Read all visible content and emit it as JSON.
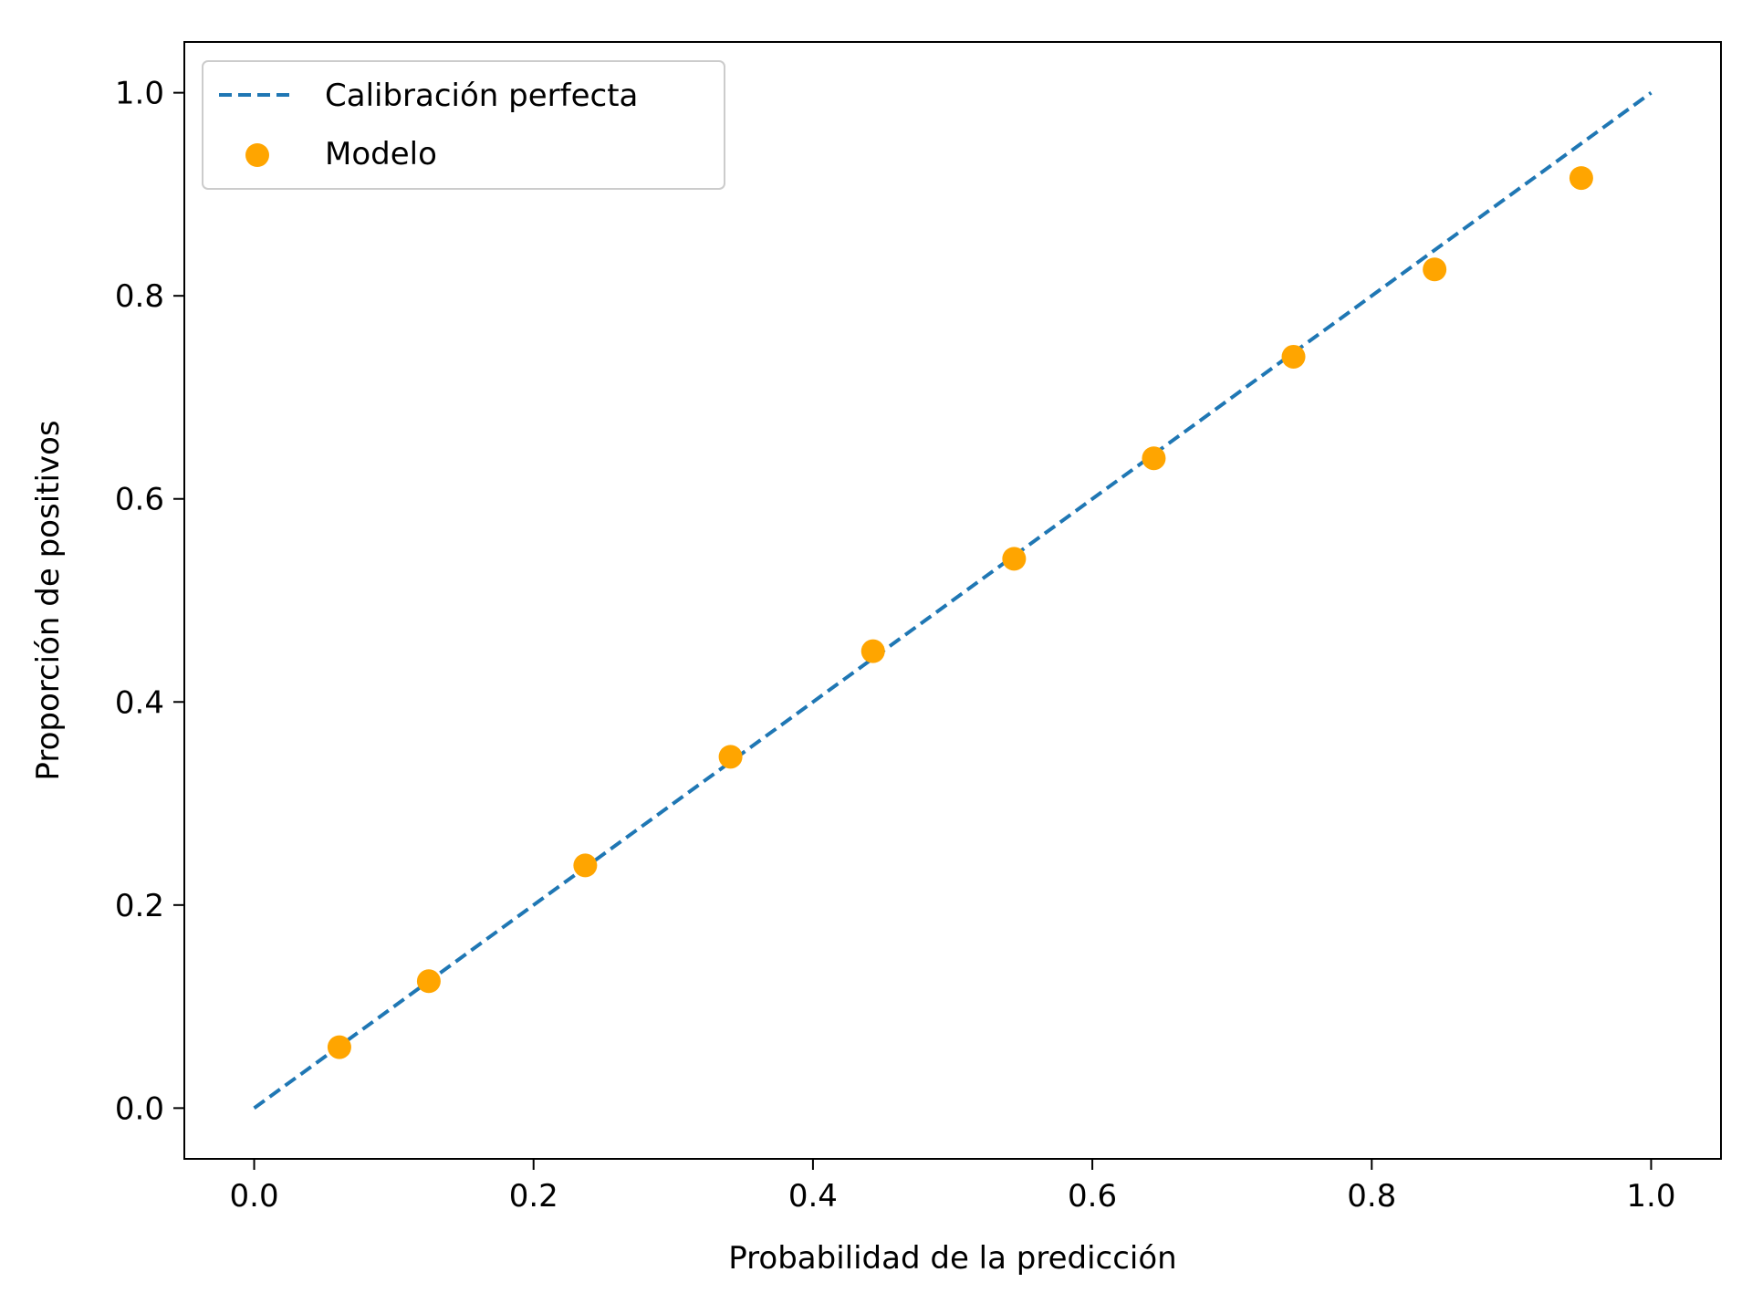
{
  "chart_data": {
    "type": "scatter",
    "xlabel": "Probabilidad de la predicción",
    "ylabel": "Proporción de positivos",
    "xlim": [
      -0.05,
      1.05
    ],
    "ylim": [
      -0.05,
      1.05
    ],
    "x_ticks": [
      0.0,
      0.2,
      0.4,
      0.6,
      0.8,
      1.0
    ],
    "y_ticks": [
      0.0,
      0.2,
      0.4,
      0.6,
      0.8,
      1.0
    ],
    "x_tick_labels": [
      "0.0",
      "0.2",
      "0.4",
      "0.6",
      "0.8",
      "1.0"
    ],
    "y_tick_labels": [
      "0.0",
      "0.2",
      "0.4",
      "0.6",
      "0.8",
      "1.0"
    ],
    "grid": false,
    "legend_position": "top-left",
    "series": [
      {
        "name": "Calibración perfecta",
        "kind": "line",
        "style": "dashed",
        "color": "#1f77b4",
        "x": [
          0.0,
          1.0
        ],
        "y": [
          0.0,
          1.0
        ]
      },
      {
        "name": "Modelo",
        "kind": "scatter",
        "color": "#ffa500",
        "x": [
          0.061,
          0.125,
          0.237,
          0.341,
          0.443,
          0.544,
          0.644,
          0.744,
          0.845,
          0.95
        ],
        "y": [
          0.06,
          0.125,
          0.239,
          0.346,
          0.45,
          0.541,
          0.64,
          0.74,
          0.826,
          0.916
        ]
      }
    ]
  }
}
